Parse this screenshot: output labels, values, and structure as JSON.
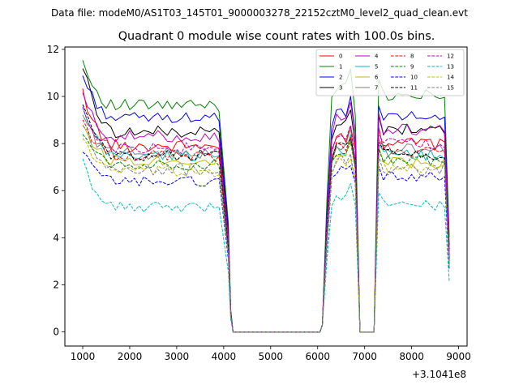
{
  "chart_data": {
    "type": "line",
    "suptitle": "Data file: modeM0/AS1T03_145T01_9000003278_22152cztM0_level2_quad_clean.evt",
    "title": "Quadrant 0 module wise count rates with 100.0s bins.",
    "xlabel": "",
    "ylabel": "",
    "x_offset_label": "+3.1041e8",
    "xlim": [
      620,
      9180
    ],
    "ylim": [
      -0.6,
      12.1
    ],
    "xticks": [
      1000,
      2000,
      3000,
      4000,
      5000,
      6000,
      7000,
      8000,
      9000
    ],
    "xtick_labels": [
      "1000",
      "2000",
      "3000",
      "4000",
      "5000",
      "6000",
      "7000",
      "8000",
      "9000"
    ],
    "yticks": [
      0,
      2,
      4,
      6,
      8,
      10,
      12
    ],
    "ytick_labels": [
      "0",
      "2",
      "4",
      "6",
      "8",
      "10",
      "12"
    ],
    "grid": false,
    "legend_position": "top-right",
    "legend_columns": 4,
    "x_segments": {
      "seg1_start": 1000,
      "seg1_step": 100,
      "seg1_count": 30,
      "gap1": [
        4100,
        4200
      ],
      "zeros": [
        4200,
        6050
      ],
      "seg2": [
        6100,
        6800
      ],
      "gap2": [
        6900,
        7200
      ],
      "seg3_start": 7300,
      "seg3_step": 100,
      "seg3_end": 8800
    },
    "series": [
      {
        "name": "0",
        "color": "#ff0000",
        "dash": "solid",
        "start": 10.2,
        "level": 7.9,
        "level2": 8.5,
        "level3": 8.0,
        "amp": 0.28
      },
      {
        "name": "1",
        "color": "#008000",
        "dash": "solid",
        "start": 11.5,
        "level": 9.6,
        "level2": 10.5,
        "level3": 10.1,
        "amp": 0.28
      },
      {
        "name": "2",
        "color": "#0000ff",
        "dash": "solid",
        "start": 10.9,
        "level": 9.1,
        "level2": 9.4,
        "level3": 9.2,
        "amp": 0.22
      },
      {
        "name": "3",
        "color": "#000000",
        "dash": "solid",
        "start": 11.3,
        "level": 8.5,
        "level2": 9.0,
        "level3": 8.6,
        "amp": 0.25
      },
      {
        "name": "4",
        "color": "#bf00bf",
        "dash": "solid",
        "start": 10.0,
        "level": 8.3,
        "level2": 9.1,
        "level3": 8.6,
        "amp": 0.25
      },
      {
        "name": "5",
        "color": "#00bfbf",
        "dash": "solid",
        "start": 9.4,
        "level": 7.5,
        "level2": 7.8,
        "level3": 7.5,
        "amp": 0.25
      },
      {
        "name": "6",
        "color": "#bfbf00",
        "dash": "solid",
        "start": 8.8,
        "level": 7.3,
        "level2": 7.7,
        "level3": 7.2,
        "amp": 0.25
      },
      {
        "name": "7",
        "color": "#808080",
        "dash": "solid",
        "start": 9.2,
        "level": 7.6,
        "level2": 8.0,
        "level3": 7.7,
        "amp": 0.28
      },
      {
        "name": "8",
        "color": "#ff0000",
        "dash": "dashed",
        "start": 9.0,
        "level": 7.5,
        "level2": 7.9,
        "level3": 7.7,
        "amp": 0.25
      },
      {
        "name": "9",
        "color": "#008000",
        "dash": "dashed",
        "start": 8.6,
        "level": 7.1,
        "level2": 7.6,
        "level3": 7.3,
        "amp": 0.22
      },
      {
        "name": "10",
        "color": "#0000ff",
        "dash": "dashed",
        "start": 7.6,
        "level": 6.4,
        "level2": 6.9,
        "level3": 6.6,
        "amp": 0.22
      },
      {
        "name": "11",
        "color": "#000000",
        "dash": "dashed",
        "start": 9.6,
        "level": 7.5,
        "level2": 7.9,
        "level3": 7.5,
        "amp": 0.25
      },
      {
        "name": "12",
        "color": "#bf00bf",
        "dash": "dashed",
        "start": 9.6,
        "level": 7.8,
        "level2": 8.2,
        "level3": 8.0,
        "amp": 0.25
      },
      {
        "name": "13",
        "color": "#00bfbf",
        "dash": "dashed",
        "start": 7.2,
        "level": 5.3,
        "level2": 5.8,
        "level3": 5.4,
        "amp": 0.22
      },
      {
        "name": "14",
        "color": "#bfbf00",
        "dash": "dashed",
        "start": 8.3,
        "level": 6.8,
        "level2": 7.2,
        "level3": 7.0,
        "amp": 0.25
      },
      {
        "name": "15",
        "color": "#808080",
        "dash": "dashed",
        "start": 8.8,
        "level": 6.9,
        "level2": 7.3,
        "level3": 6.9,
        "amp": 0.3
      }
    ]
  }
}
